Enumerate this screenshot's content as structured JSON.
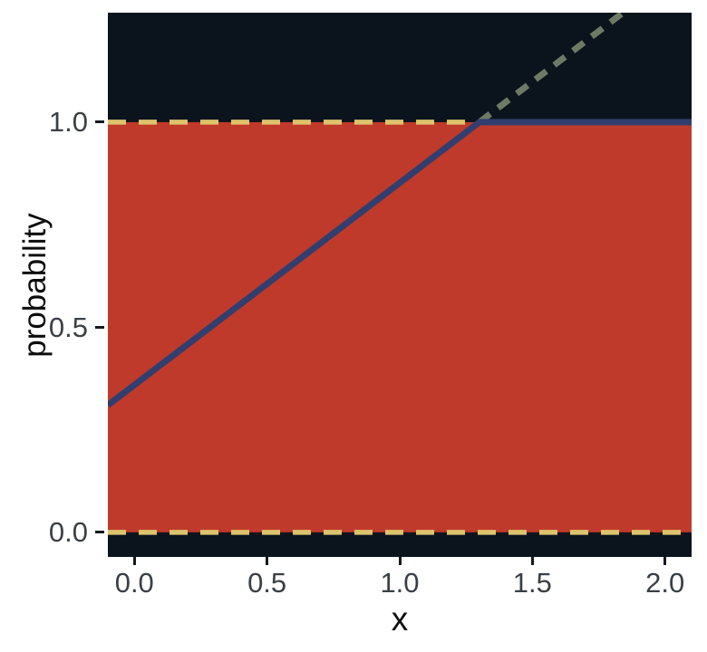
{
  "chart_data": {
    "type": "line",
    "title": "",
    "xlabel": "x",
    "ylabel": "probability",
    "xlim": [
      -0.1,
      2.1
    ],
    "ylim": [
      -0.06,
      1.267
    ],
    "grid": false,
    "legend": false,
    "panel_background": "#0b131c",
    "outer_background": "#ffffff",
    "tick_color": "#151a1e",
    "tick_label_color": "#3a4046",
    "axis_title_color": "#0d0d0d",
    "x_ticks": [
      {
        "value": 0.0,
        "label": "0.0"
      },
      {
        "value": 0.5,
        "label": "0.5"
      },
      {
        "value": 1.0,
        "label": "1.0"
      },
      {
        "value": 1.5,
        "label": "1.5"
      },
      {
        "value": 2.0,
        "label": "2.0"
      }
    ],
    "y_ticks": [
      {
        "value": 0.0,
        "label": "0.0"
      },
      {
        "value": 0.5,
        "label": "0.5"
      },
      {
        "value": 1.0,
        "label": "1.0"
      }
    ],
    "band": {
      "name": "valid-probability-band",
      "y_from": 0.0,
      "y_to": 1.0,
      "color": "#c03a2b"
    },
    "reference_lines": [
      {
        "name": "hline-y0",
        "y": 0.0,
        "style": "dashed",
        "color": "#ddc46c",
        "width": 5.5
      },
      {
        "name": "hline-y1",
        "y": 1.0,
        "style": "dashed",
        "color": "#ddc46c",
        "width": 5.5
      }
    ],
    "series": [
      {
        "name": "capped-probability-line",
        "style": "solid",
        "color": "#313e6e",
        "width": 7,
        "points": [
          [
            -0.1,
            0.31
          ],
          [
            1.3,
            1.0
          ],
          [
            2.1,
            1.0
          ]
        ]
      },
      {
        "name": "uncapped-extension-line",
        "style": "dashed",
        "color": "#6e7a66",
        "width": 7,
        "points": [
          [
            1.3,
            1.0
          ],
          [
            2.0,
            1.345
          ]
        ]
      }
    ]
  }
}
